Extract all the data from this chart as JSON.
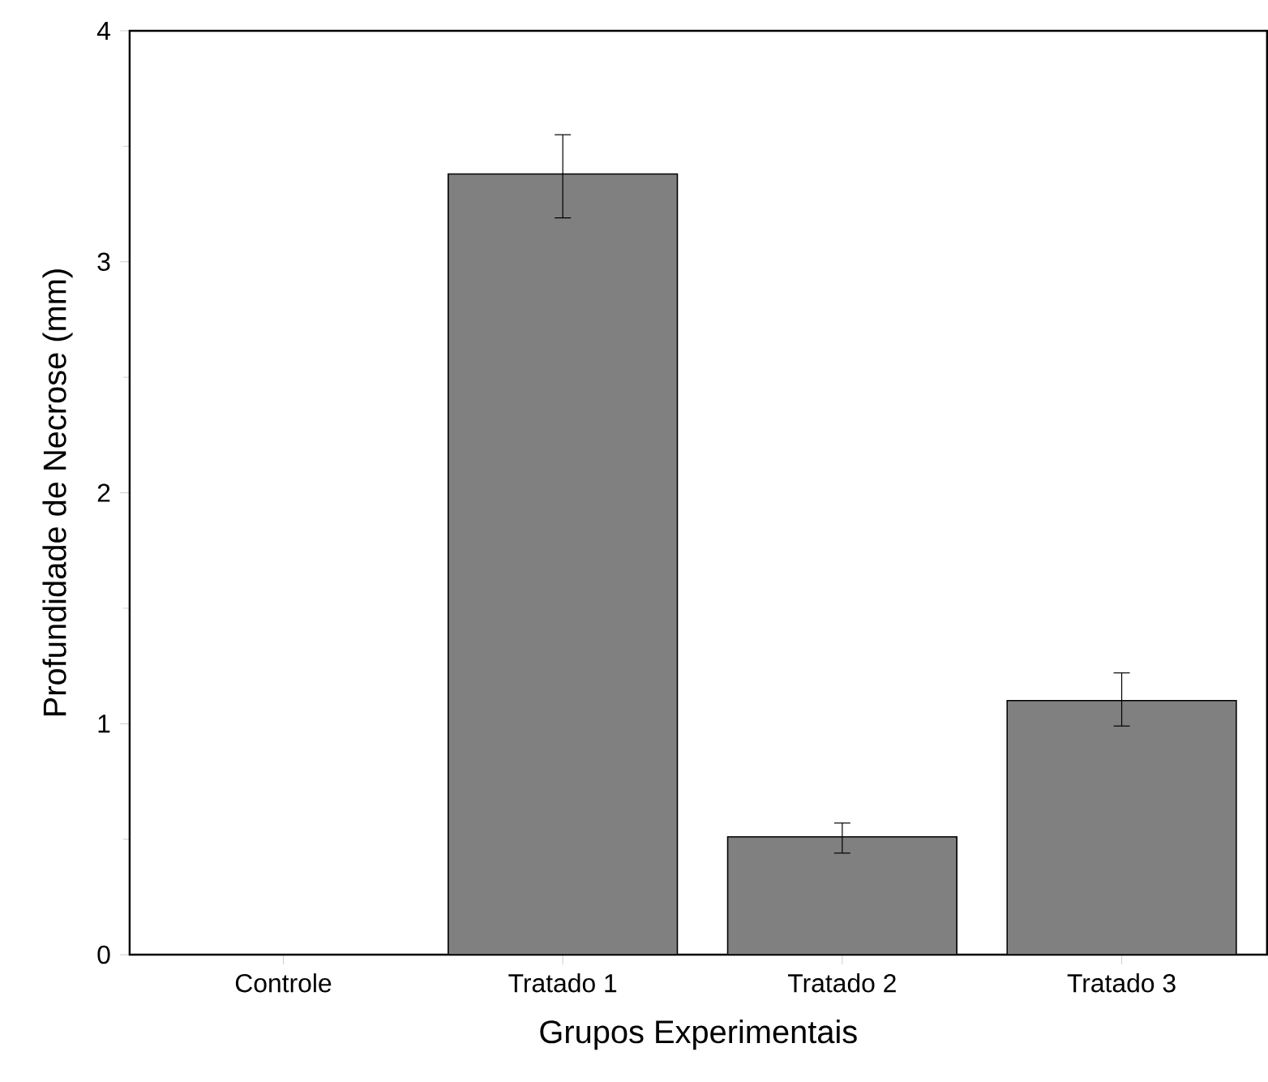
{
  "chart_data": {
    "type": "bar",
    "xlabel": "Grupos Experimentais",
    "ylabel": "Profundidade de Necrose (mm)",
    "categories": [
      "Controle",
      "Tratado 1",
      "Tratado 2",
      "Tratado 3"
    ],
    "values": [
      0,
      3.38,
      0.51,
      1.1
    ],
    "errors": [
      null,
      [
        3.19,
        3.55
      ],
      [
        0.44,
        0.57
      ],
      [
        0.99,
        1.22
      ]
    ],
    "color": "#808080",
    "ylim": [
      0,
      4
    ],
    "yticks": [
      0,
      1,
      2,
      3,
      4
    ],
    "grid": false
  }
}
